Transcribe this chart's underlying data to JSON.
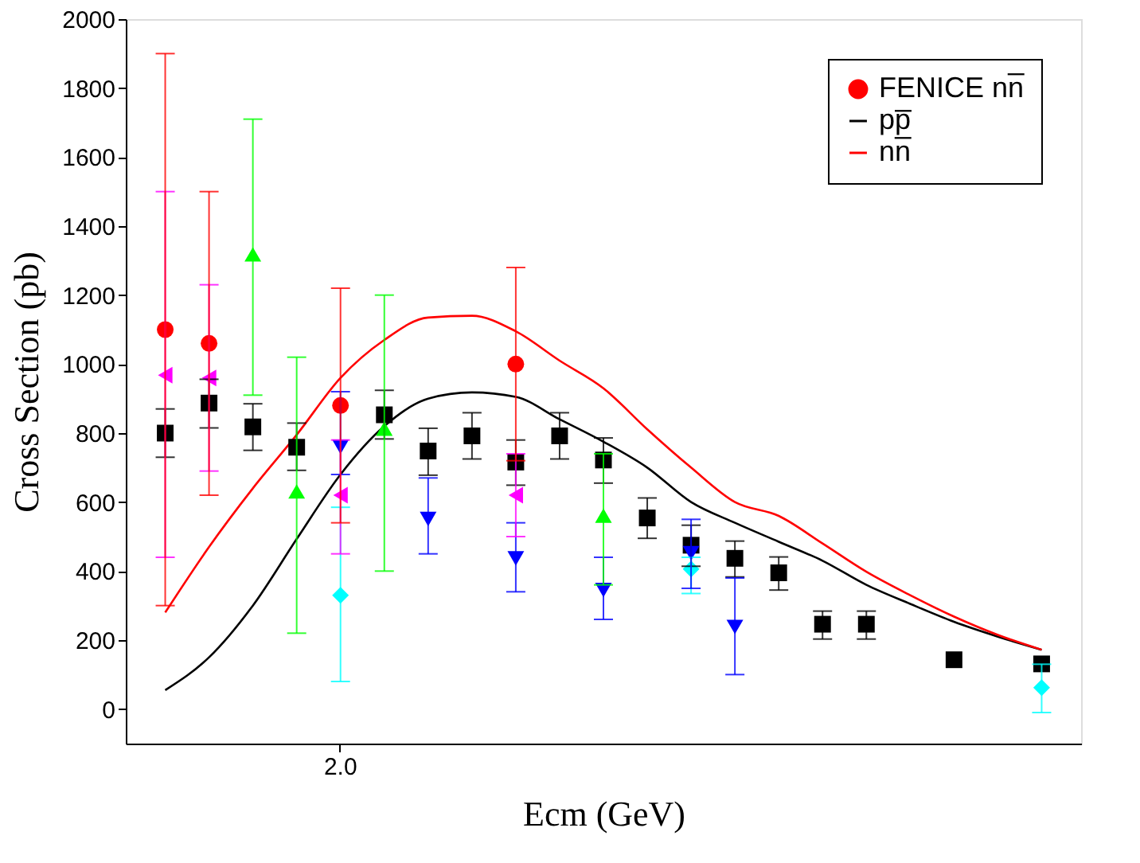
{
  "chart_data": {
    "type": "scatter",
    "xlabel": "Ecm (GeV)",
    "ylabel": "Cross Section (pb)",
    "categories": [
      null,
      null,
      null,
      null,
      "2.0",
      null,
      null,
      null,
      null,
      null,
      null,
      null,
      null,
      null,
      null,
      null,
      null,
      null,
      null,
      null,
      null
    ],
    "ylim": [
      -100,
      2000
    ],
    "yticks": [
      0,
      200,
      400,
      600,
      800,
      1000,
      1200,
      1400,
      1600,
      1800,
      2000
    ],
    "grid": false,
    "legend": "top right",
    "series": [
      {
        "name": "FENICE nn̅",
        "marker": "circle",
        "color": "#ff0000",
        "values": [
          1100,
          1060,
          null,
          null,
          880,
          null,
          null,
          null,
          1000,
          null,
          null,
          null,
          null,
          null,
          null,
          null,
          null,
          null,
          null,
          null,
          null
        ],
        "errors": [
          [
            300,
            1900
          ],
          [
            620,
            1500
          ],
          null,
          null,
          [
            540,
            1220
          ],
          null,
          null,
          null,
          [
            720,
            1280
          ],
          null,
          null,
          null,
          null,
          null,
          null,
          null,
          null,
          null,
          null,
          null,
          null
        ]
      },
      {
        "name": "pp̅",
        "type": "line",
        "color": "#000000",
        "values": [
          55,
          150,
          300,
          493,
          680,
          820,
          900,
          918,
          905,
          840,
          775,
          700,
          600,
          540,
          485,
          430,
          360,
          305,
          253,
          210,
          172
        ]
      },
      {
        "name": "nn̅",
        "type": "line",
        "color": "#ff0000",
        "values": [
          280,
          470,
          640,
          795,
          960,
          1070,
          1135,
          1140,
          1095,
          1010,
          930,
          811,
          700,
          600,
          560,
          480,
          398,
          330,
          268,
          215,
          172
        ]
      },
      {
        "marker": "triangle-left",
        "color": "#ff00ff",
        "values": [
          968,
          960,
          null,
          null,
          620,
          null,
          null,
          null,
          620,
          null,
          null,
          null,
          null,
          null,
          null,
          null,
          null,
          null,
          null,
          null,
          null
        ],
        "errors": [
          [
            440,
            1500
          ],
          [
            690,
            1230
          ],
          null,
          null,
          [
            450,
            780
          ],
          null,
          null,
          null,
          [
            500,
            740
          ],
          null,
          null,
          null,
          null,
          null,
          null,
          null,
          null,
          null,
          null,
          null,
          null
        ]
      },
      {
        "marker": "triangle",
        "color": "#00ff00",
        "values": [
          null,
          null,
          1311,
          624,
          null,
          806,
          null,
          null,
          null,
          null,
          554,
          null,
          null,
          null,
          null,
          null,
          null,
          null,
          null,
          null,
          null
        ],
        "errors": [
          null,
          null,
          [
            910,
            1710
          ],
          [
            220,
            1020
          ],
          null,
          [
            400,
            1200
          ],
          null,
          null,
          null,
          null,
          [
            360,
            740
          ],
          null,
          null,
          null,
          null,
          null,
          null,
          null,
          null,
          null,
          null
        ]
      },
      {
        "marker": "triangle-down",
        "color": "#0000ff",
        "values": [
          null,
          null,
          null,
          null,
          760,
          null,
          551,
          null,
          437,
          null,
          345,
          null,
          452,
          238,
          null,
          null,
          null,
          null,
          null,
          null,
          null
        ],
        "errors": [
          null,
          null,
          null,
          null,
          [
            680,
            920
          ],
          null,
          [
            450,
            670
          ],
          null,
          [
            340,
            540
          ],
          null,
          [
            260,
            440
          ],
          null,
          [
            350,
            550
          ],
          [
            100,
            380
          ],
          null,
          null,
          null,
          null,
          null,
          null,
          null
        ]
      },
      {
        "marker": "diamond",
        "color": "#00ffff",
        "values": [
          null,
          null,
          null,
          null,
          330,
          null,
          null,
          null,
          null,
          null,
          null,
          null,
          406,
          null,
          null,
          null,
          null,
          null,
          null,
          null,
          62
        ],
        "errors": [
          null,
          null,
          null,
          null,
          [
            80,
            585
          ],
          null,
          null,
          null,
          null,
          null,
          null,
          null,
          [
            335,
            440
          ],
          null,
          null,
          null,
          null,
          null,
          null,
          null,
          [
            -10,
            130
          ]
        ]
      },
      {
        "marker": "square",
        "color": "#000000",
        "values": [
          800,
          887,
          818,
          759,
          null,
          853,
          748,
          792,
          716,
          792,
          722,
          554,
          475,
          437,
          395,
          246,
          246,
          null,
          143,
          null,
          131
        ],
        "errors": [
          [
            730,
            870
          ],
          [
            815,
            956
          ],
          [
            750,
            885
          ],
          [
            692,
            829
          ],
          null,
          [
            783,
            924
          ],
          [
            678,
            814
          ],
          [
            725,
            859
          ],
          [
            649,
            780
          ],
          [
            725,
            859
          ],
          [
            655,
            786
          ],
          [
            495,
            612
          ],
          [
            414,
            533
          ],
          [
            383,
            487
          ],
          [
            345,
            441
          ],
          [
            203,
            284
          ],
          [
            203,
            284
          ],
          null,
          null,
          null,
          null
        ]
      }
    ]
  }
}
